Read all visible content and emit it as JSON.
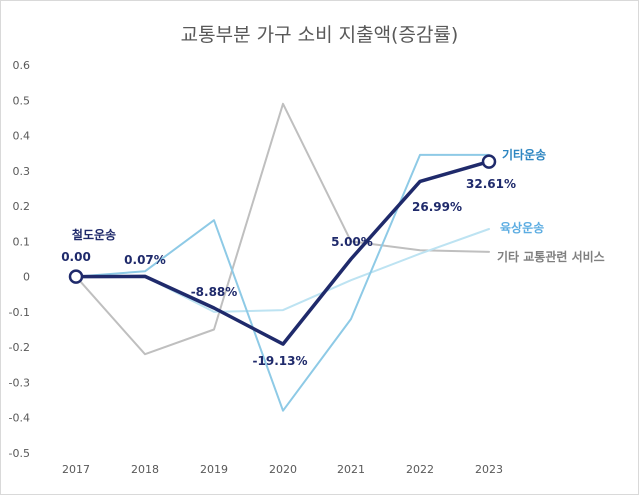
{
  "chart_data": {
    "type": "line",
    "title": "교통부분 가구 소비 지출액(증감률)",
    "x": [
      "2017",
      "2018",
      "2019",
      "2020",
      "2021",
      "2022",
      "2023"
    ],
    "ylim": [
      -0.5,
      0.6
    ],
    "yticks": [
      "0.6",
      "0.5",
      "0.4",
      "0.3",
      "0.2",
      "0.1",
      "0",
      "-0.1",
      "-0.2",
      "-0.3",
      "-0.4",
      "-0.5"
    ],
    "grid": false,
    "series": [
      {
        "name": "기타 교통관련 서비스",
        "color": "#bfbfbf",
        "values": [
          0.0,
          -0.22,
          -0.15,
          0.49,
          0.1,
          0.075,
          0.07
        ]
      },
      {
        "name": "육상운송",
        "color": "#bde3f2",
        "values": [
          0.0,
          0.0,
          -0.1,
          -0.095,
          -0.01,
          0.065,
          0.135
        ]
      },
      {
        "name": "기타운송",
        "color": "#8ecae6",
        "values": [
          0.0,
          0.015,
          0.16,
          -0.38,
          -0.12,
          0.345,
          0.345
        ]
      },
      {
        "name": "철도운송",
        "color": "#1f2a6b",
        "values": [
          0.0,
          0.0007,
          -0.0888,
          -0.1913,
          0.05,
          0.2699,
          0.3261
        ]
      }
    ],
    "data_labels": [
      "0.00",
      "0.07%",
      "-8.88%",
      "-19.13%",
      "5.00%",
      "26.99%",
      "32.61%"
    ]
  }
}
